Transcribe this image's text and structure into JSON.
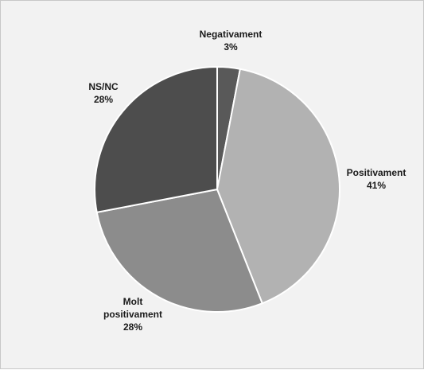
{
  "chart_data": {
    "type": "pie",
    "title": "",
    "start_angle": "12 o'clock",
    "direction": "clockwise",
    "legend": "none",
    "slices": [
      {
        "label": [
          "Negativament"
        ],
        "value": 3,
        "value_label": "3%",
        "color": "#595959"
      },
      {
        "label": [
          "Positivament"
        ],
        "value": 41,
        "value_label": "41%",
        "color": "#b2b2b2"
      },
      {
        "label": [
          "Molt",
          "positivament"
        ],
        "value": 28,
        "value_label": "28%",
        "color": "#8c8c8c"
      },
      {
        "label": [
          "NS/NC"
        ],
        "value": 28,
        "value_label": "28%",
        "color": "#4d4d4d"
      }
    ]
  }
}
